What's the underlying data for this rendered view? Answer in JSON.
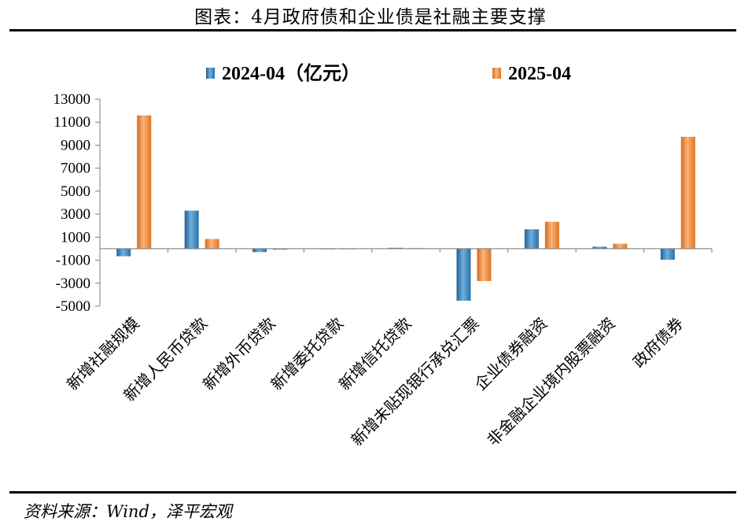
{
  "page": {
    "title": "图表：4月政府债和企业债是社融主要支撑",
    "source": "资料来源：Wind，泽平宏观"
  },
  "colors": {
    "series_2024": "#3a87bf",
    "series_2025": "#f08a3c",
    "axis": "#7f7f7f"
  },
  "chart_data": {
    "type": "bar",
    "title": "",
    "xlabel": "",
    "ylabel": "",
    "ylim": [
      -5000,
      13000
    ],
    "yticks": [
      13000,
      11000,
      9000,
      7000,
      5000,
      3000,
      1000,
      -1000,
      -3000,
      -5000
    ],
    "legend_position": "top",
    "grid": false,
    "categories": [
      "新增社融规模",
      "新增人民币贷款",
      "新增外币贷款",
      "新增委托贷款",
      "新增信托贷款",
      "新增未贴现银行承兑汇票",
      "企业债券融资",
      "非金融企业境内股票融资",
      "政府债券"
    ],
    "series": [
      {
        "name": "2024-04（亿元）",
        "values": [
          -658,
          3306,
          -298,
          -28,
          80,
          -4523,
          1686,
          170,
          -962
        ]
      },
      {
        "name": "2025-04",
        "values": [
          11591,
          847,
          -100,
          -10,
          20,
          -2818,
          2340,
          430,
          9729
        ]
      }
    ]
  }
}
